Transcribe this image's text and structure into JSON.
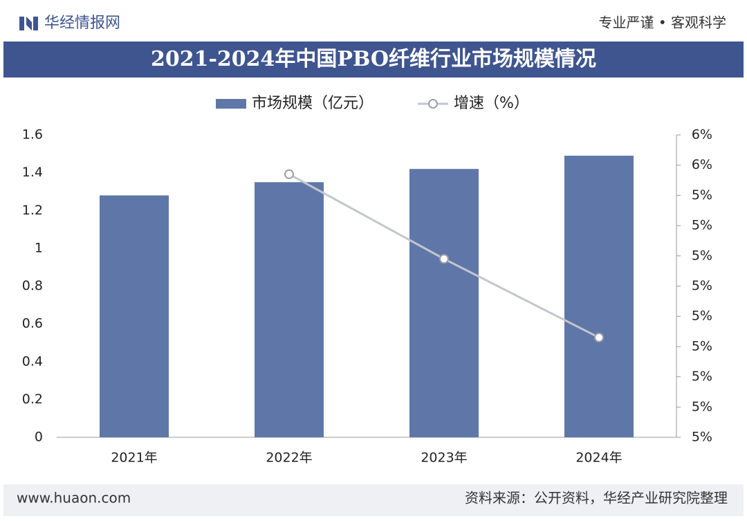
{
  "header": {
    "brand": "华经情报网",
    "slogan": "专业严谨 • 客观科学"
  },
  "chart_data": {
    "type": "bar_line",
    "title": "2021-2024年中国PBO纤维行业市场规模情况",
    "categories": [
      "2021年",
      "2022年",
      "2023年",
      "2024年"
    ],
    "series": [
      {
        "name": "市场规模（亿元）",
        "color": "#5f77a8",
        "type": "bar",
        "values": [
          1.28,
          1.35,
          1.42,
          1.49
        ]
      },
      {
        "name": "增速（%）",
        "color": "#c3c6cc",
        "type": "line",
        "axis": "y2",
        "values": [
          null,
          5.47,
          5.19,
          4.93
        ]
      }
    ],
    "ylim": [
      0,
      1.6
    ],
    "yticks": [
      0,
      0.2,
      0.4,
      0.6,
      0.8,
      1,
      1.2,
      1.4,
      1.6
    ],
    "y2lim": [
      4.6,
      5.6
    ],
    "y2ticks": [
      {
        "value": 4.6,
        "label": "5%"
      },
      {
        "value": 4.7,
        "label": "5%"
      },
      {
        "value": 4.8,
        "label": "5%"
      },
      {
        "value": 4.9,
        "label": "5%"
      },
      {
        "value": 5.0,
        "label": "5%"
      },
      {
        "value": 5.1,
        "label": "5%"
      },
      {
        "value": 5.2,
        "label": "5%"
      },
      {
        "value": 5.3,
        "label": "5%"
      },
      {
        "value": 5.4,
        "label": "5%"
      },
      {
        "value": 5.5,
        "label": "6%"
      },
      {
        "value": 5.6,
        "label": "6%"
      }
    ],
    "grid": false,
    "legend": "top"
  },
  "footer": {
    "website": "www.huaon.com",
    "source": "资料来源：公开资料，华经产业研究院整理"
  }
}
